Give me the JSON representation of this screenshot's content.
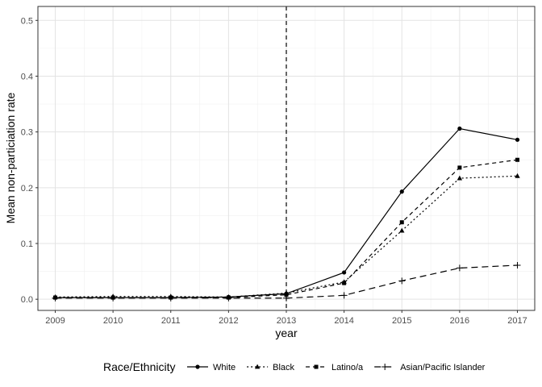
{
  "chart_data": {
    "type": "line",
    "xlabel": "year",
    "ylabel": "Mean non-particiation rate",
    "x": [
      2009,
      2010,
      2011,
      2012,
      2013,
      2014,
      2015,
      2016,
      2017
    ],
    "xlim": [
      2008.7,
      2017.3
    ],
    "ylim": [
      -0.02,
      0.525
    ],
    "yticks": [
      "0.0",
      "0.1",
      "0.2",
      "0.3",
      "0.4",
      "0.5"
    ],
    "ytick_values": [
      0,
      0.1,
      0.2,
      0.3,
      0.4,
      0.5
    ],
    "grid": true,
    "reference_line": {
      "x": 2013,
      "style": "dashed"
    },
    "legend": {
      "title": "Race/Ethnicity",
      "position": "bottom"
    },
    "series": [
      {
        "name": "White",
        "linetype": "solid",
        "marker": "circle",
        "values": [
          0.003,
          0.003,
          0.003,
          0.004,
          0.01,
          0.048,
          0.193,
          0.306,
          0.286
        ]
      },
      {
        "name": "Black",
        "linetype": "dotted",
        "marker": "triangle",
        "values": [
          0.004,
          0.005,
          0.005,
          0.004,
          0.011,
          0.031,
          0.123,
          0.217,
          0.221
        ]
      },
      {
        "name": "Latino/a",
        "linetype": "dashed",
        "marker": "square",
        "values": [
          0.003,
          0.003,
          0.003,
          0.003,
          0.008,
          0.029,
          0.138,
          0.236,
          0.25
        ]
      },
      {
        "name": "Asian/Pacific Islander",
        "linetype": "longdash",
        "marker": "plus",
        "values": [
          0.002,
          0.002,
          0.002,
          0.002,
          0.002,
          0.007,
          0.033,
          0.056,
          0.061
        ]
      }
    ]
  }
}
